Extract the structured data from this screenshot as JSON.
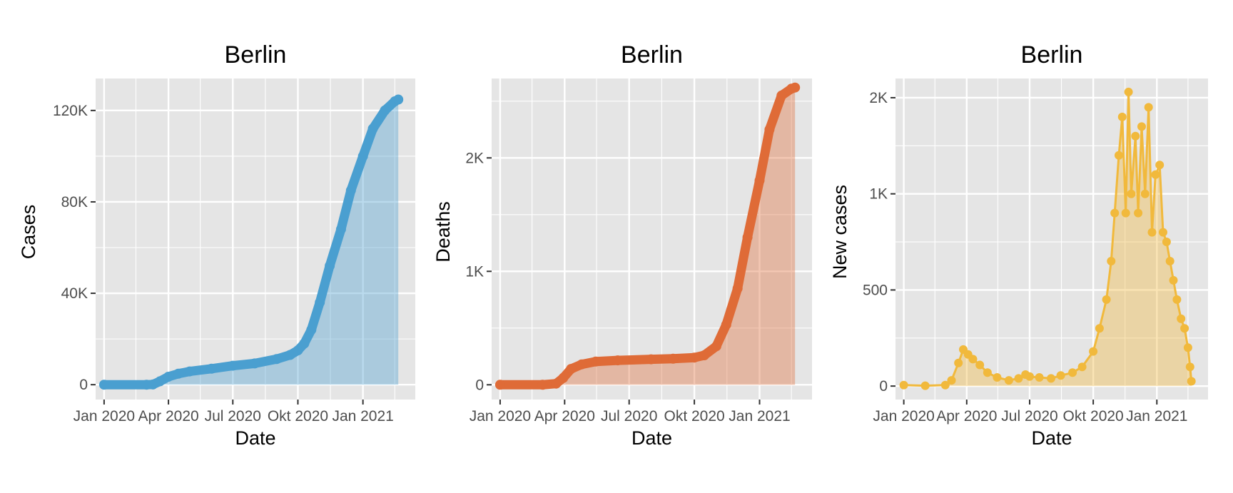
{
  "colors": {
    "cases": "#4a9fd0",
    "deaths": "#df6b37",
    "new_cases": "#f1b93c"
  },
  "chart_data": [
    {
      "type": "area",
      "title": "Berlin",
      "xlabel": "Date",
      "ylabel": "Cases",
      "x_ticks": [
        "Jan 2020",
        "Apr 2020",
        "Jul 2020",
        "Okt 2020",
        "Jan 2021"
      ],
      "y_ticks": [
        "0",
        "40K",
        "80K",
        "120K"
      ],
      "y_tick_values": [
        0,
        40000,
        80000,
        120000
      ],
      "xlim": [
        "2019-12-20",
        "2021-03-16"
      ],
      "ylim": [
        -6500,
        134000
      ],
      "grid": true,
      "color": "cases",
      "points": [
        [
          "2020-01-01",
          0
        ],
        [
          "2020-03-01",
          0
        ],
        [
          "2020-03-10",
          100
        ],
        [
          "2020-03-20",
          1500
        ],
        [
          "2020-04-01",
          3500
        ],
        [
          "2020-04-15",
          4800
        ],
        [
          "2020-05-01",
          5800
        ],
        [
          "2020-06-01",
          7000
        ],
        [
          "2020-07-01",
          8300
        ],
        [
          "2020-08-01",
          9300
        ],
        [
          "2020-09-01",
          11200
        ],
        [
          "2020-09-20",
          13000
        ],
        [
          "2020-10-01",
          15000
        ],
        [
          "2020-10-10",
          18000
        ],
        [
          "2020-10-20",
          24000
        ],
        [
          "2020-11-01",
          36000
        ],
        [
          "2020-11-15",
          52000
        ],
        [
          "2020-12-01",
          68000
        ],
        [
          "2020-12-15",
          85000
        ],
        [
          "2021-01-01",
          100000
        ],
        [
          "2021-01-15",
          112000
        ],
        [
          "2021-02-01",
          120000
        ],
        [
          "2021-02-15",
          124000
        ],
        [
          "2021-02-20",
          124800
        ]
      ]
    },
    {
      "type": "area",
      "title": "Berlin",
      "xlabel": "Date",
      "ylabel": "Deaths",
      "x_ticks": [
        "Jan 2020",
        "Apr 2020",
        "Jul 2020",
        "Okt 2020",
        "Jan 2021"
      ],
      "y_ticks": [
        "0",
        "1K",
        "2K"
      ],
      "y_tick_values": [
        0,
        1000,
        2000
      ],
      "xlim": [
        "2019-12-20",
        "2021-03-16"
      ],
      "ylim": [
        -130,
        2700
      ],
      "grid": true,
      "color": "deaths",
      "points": [
        [
          "2020-01-01",
          0
        ],
        [
          "2020-03-01",
          0
        ],
        [
          "2020-03-20",
          10
        ],
        [
          "2020-03-30",
          60
        ],
        [
          "2020-04-10",
          140
        ],
        [
          "2020-04-25",
          180
        ],
        [
          "2020-05-15",
          205
        ],
        [
          "2020-06-15",
          215
        ],
        [
          "2020-08-01",
          225
        ],
        [
          "2020-09-01",
          230
        ],
        [
          "2020-10-01",
          240
        ],
        [
          "2020-10-15",
          260
        ],
        [
          "2020-11-01",
          340
        ],
        [
          "2020-11-15",
          530
        ],
        [
          "2020-12-01",
          850
        ],
        [
          "2020-12-15",
          1300
        ],
        [
          "2021-01-01",
          1800
        ],
        [
          "2021-01-15",
          2250
        ],
        [
          "2021-02-01",
          2550
        ],
        [
          "2021-02-15",
          2610
        ],
        [
          "2021-02-20",
          2620
        ]
      ]
    },
    {
      "type": "area",
      "title": "Berlin",
      "xlabel": "Date",
      "ylabel": "New cases",
      "x_ticks": [
        "Jan 2020",
        "Apr 2020",
        "Jul 2020",
        "Okt 2020",
        "Jan 2021"
      ],
      "y_ticks": [
        "0",
        "500",
        "1K",
        "2K"
      ],
      "y_tick_values": [
        0,
        500,
        1000,
        1500
      ],
      "xlim": [
        "2019-12-20",
        "2021-03-16"
      ],
      "ylim": [
        -70,
        1600
      ],
      "grid": true,
      "color": "new_cases",
      "points": [
        [
          "2020-01-01",
          5
        ],
        [
          "2020-02-01",
          2
        ],
        [
          "2020-03-01",
          5
        ],
        [
          "2020-03-10",
          30
        ],
        [
          "2020-03-20",
          120
        ],
        [
          "2020-03-27",
          190
        ],
        [
          "2020-04-03",
          165
        ],
        [
          "2020-04-10",
          140
        ],
        [
          "2020-04-20",
          110
        ],
        [
          "2020-05-01",
          70
        ],
        [
          "2020-05-15",
          45
        ],
        [
          "2020-06-01",
          30
        ],
        [
          "2020-06-15",
          40
        ],
        [
          "2020-06-25",
          60
        ],
        [
          "2020-07-01",
          50
        ],
        [
          "2020-07-15",
          45
        ],
        [
          "2020-08-01",
          40
        ],
        [
          "2020-08-15",
          55
        ],
        [
          "2020-09-01",
          70
        ],
        [
          "2020-09-15",
          100
        ],
        [
          "2020-10-01",
          180
        ],
        [
          "2020-10-10",
          300
        ],
        [
          "2020-10-20",
          450
        ],
        [
          "2020-10-27",
          650
        ],
        [
          "2020-11-01",
          900
        ],
        [
          "2020-11-07",
          1200
        ],
        [
          "2020-11-12",
          1400
        ],
        [
          "2020-11-17",
          900
        ],
        [
          "2020-11-21",
          1530
        ],
        [
          "2020-11-25",
          1000
        ],
        [
          "2020-12-01",
          1300
        ],
        [
          "2020-12-05",
          900
        ],
        [
          "2020-12-10",
          1350
        ],
        [
          "2020-12-15",
          1000
        ],
        [
          "2020-12-20",
          1450
        ],
        [
          "2020-12-25",
          800
        ],
        [
          "2020-12-30",
          1100
        ],
        [
          "2021-01-05",
          1150
        ],
        [
          "2021-01-10",
          800
        ],
        [
          "2021-01-15",
          750
        ],
        [
          "2021-01-20",
          650
        ],
        [
          "2021-01-25",
          550
        ],
        [
          "2021-01-30",
          450
        ],
        [
          "2021-02-05",
          350
        ],
        [
          "2021-02-10",
          300
        ],
        [
          "2021-02-15",
          200
        ],
        [
          "2021-02-18",
          100
        ],
        [
          "2021-02-20",
          25
        ]
      ]
    }
  ]
}
